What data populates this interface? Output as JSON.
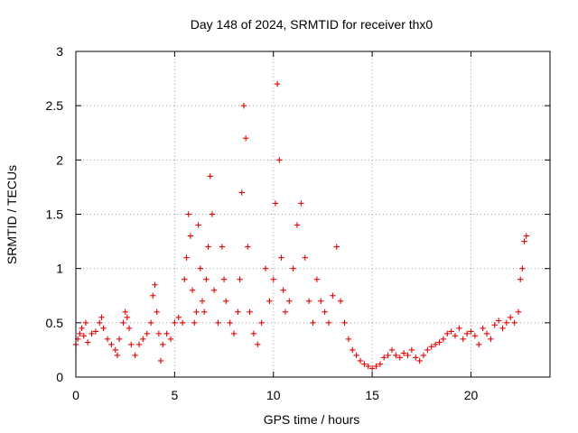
{
  "chart_data": {
    "type": "scatter",
    "title": "Day 148 of 2024, SRMTID for receiver thx0",
    "xlabel": "GPS time / hours",
    "ylabel": "SRMTID / TECUs",
    "xlim": [
      0,
      24
    ],
    "ylim": [
      0,
      3
    ],
    "x_ticks": [
      0,
      5,
      10,
      15,
      20
    ],
    "y_ticks": [
      0,
      0.5,
      1,
      1.5,
      2,
      2.5,
      3
    ],
    "x_tick_labels": [
      "0",
      "5",
      "10",
      "15",
      "20"
    ],
    "y_tick_labels": [
      "0",
      "0.5",
      "1",
      "1.5",
      "2",
      "2.5",
      "3"
    ],
    "grid": true,
    "marker": "+",
    "color": "#e60000",
    "series": [
      {
        "name": "SRMTID",
        "x": [
          0.0,
          0.1,
          0.2,
          0.3,
          0.4,
          0.5,
          0.6,
          0.8,
          1.0,
          1.2,
          1.3,
          1.4,
          1.6,
          1.8,
          2.0,
          2.1,
          2.2,
          2.4,
          2.5,
          2.6,
          2.7,
          2.8,
          3.0,
          3.2,
          3.4,
          3.6,
          3.8,
          3.9,
          4.0,
          4.1,
          4.2,
          4.3,
          4.4,
          4.6,
          4.8,
          5.0,
          5.2,
          5.4,
          5.5,
          5.6,
          5.7,
          5.8,
          5.9,
          6.0,
          6.1,
          6.2,
          6.3,
          6.4,
          6.5,
          6.6,
          6.7,
          6.8,
          6.9,
          7.0,
          7.2,
          7.4,
          7.5,
          7.6,
          7.8,
          8.0,
          8.2,
          8.3,
          8.4,
          8.5,
          8.6,
          8.7,
          8.8,
          9.0,
          9.2,
          9.4,
          9.6,
          9.8,
          10.0,
          10.1,
          10.2,
          10.3,
          10.4,
          10.5,
          10.6,
          10.8,
          11.0,
          11.2,
          11.4,
          11.6,
          11.8,
          12.0,
          12.2,
          12.4,
          12.6,
          12.8,
          13.0,
          13.2,
          13.4,
          13.6,
          13.8,
          14.0,
          14.2,
          14.4,
          14.6,
          14.8,
          15.0,
          15.2,
          15.4,
          15.6,
          15.8,
          16.0,
          16.2,
          16.4,
          16.6,
          16.8,
          17.0,
          17.2,
          17.4,
          17.6,
          17.8,
          18.0,
          18.2,
          18.4,
          18.6,
          18.8,
          19.0,
          19.2,
          19.4,
          19.6,
          19.8,
          20.0,
          20.2,
          20.4,
          20.6,
          20.8,
          21.0,
          21.2,
          21.4,
          21.6,
          21.8,
          22.0,
          22.2,
          22.4,
          22.5,
          22.6,
          22.7,
          22.8
        ],
        "y": [
          0.3,
          0.35,
          0.4,
          0.45,
          0.38,
          0.5,
          0.32,
          0.4,
          0.42,
          0.5,
          0.55,
          0.45,
          0.35,
          0.3,
          0.25,
          0.2,
          0.35,
          0.5,
          0.6,
          0.55,
          0.45,
          0.3,
          0.2,
          0.3,
          0.35,
          0.4,
          0.5,
          0.75,
          0.85,
          0.6,
          0.4,
          0.15,
          0.3,
          0.4,
          0.35,
          0.5,
          0.55,
          0.5,
          0.9,
          1.1,
          1.5,
          1.3,
          0.8,
          0.5,
          0.6,
          1.4,
          1.0,
          0.7,
          0.6,
          0.9,
          1.2,
          1.85,
          1.5,
          0.8,
          0.5,
          1.2,
          0.9,
          0.7,
          0.5,
          0.4,
          0.6,
          0.9,
          1.7,
          2.5,
          2.2,
          1.2,
          0.6,
          0.4,
          0.3,
          0.5,
          1.0,
          0.7,
          0.9,
          1.6,
          2.7,
          2.0,
          1.1,
          0.8,
          0.6,
          0.7,
          1.0,
          1.4,
          1.6,
          1.1,
          0.7,
          0.5,
          0.9,
          0.7,
          0.6,
          0.5,
          0.75,
          1.2,
          0.7,
          0.5,
          0.35,
          0.25,
          0.2,
          0.15,
          0.12,
          0.1,
          0.08,
          0.1,
          0.12,
          0.18,
          0.2,
          0.25,
          0.2,
          0.18,
          0.22,
          0.2,
          0.25,
          0.18,
          0.15,
          0.2,
          0.25,
          0.28,
          0.3,
          0.32,
          0.35,
          0.4,
          0.42,
          0.38,
          0.45,
          0.35,
          0.4,
          0.42,
          0.38,
          0.3,
          0.45,
          0.4,
          0.35,
          0.48,
          0.52,
          0.45,
          0.5,
          0.55,
          0.5,
          0.6,
          0.9,
          1.0,
          1.25,
          1.3
        ]
      }
    ]
  }
}
